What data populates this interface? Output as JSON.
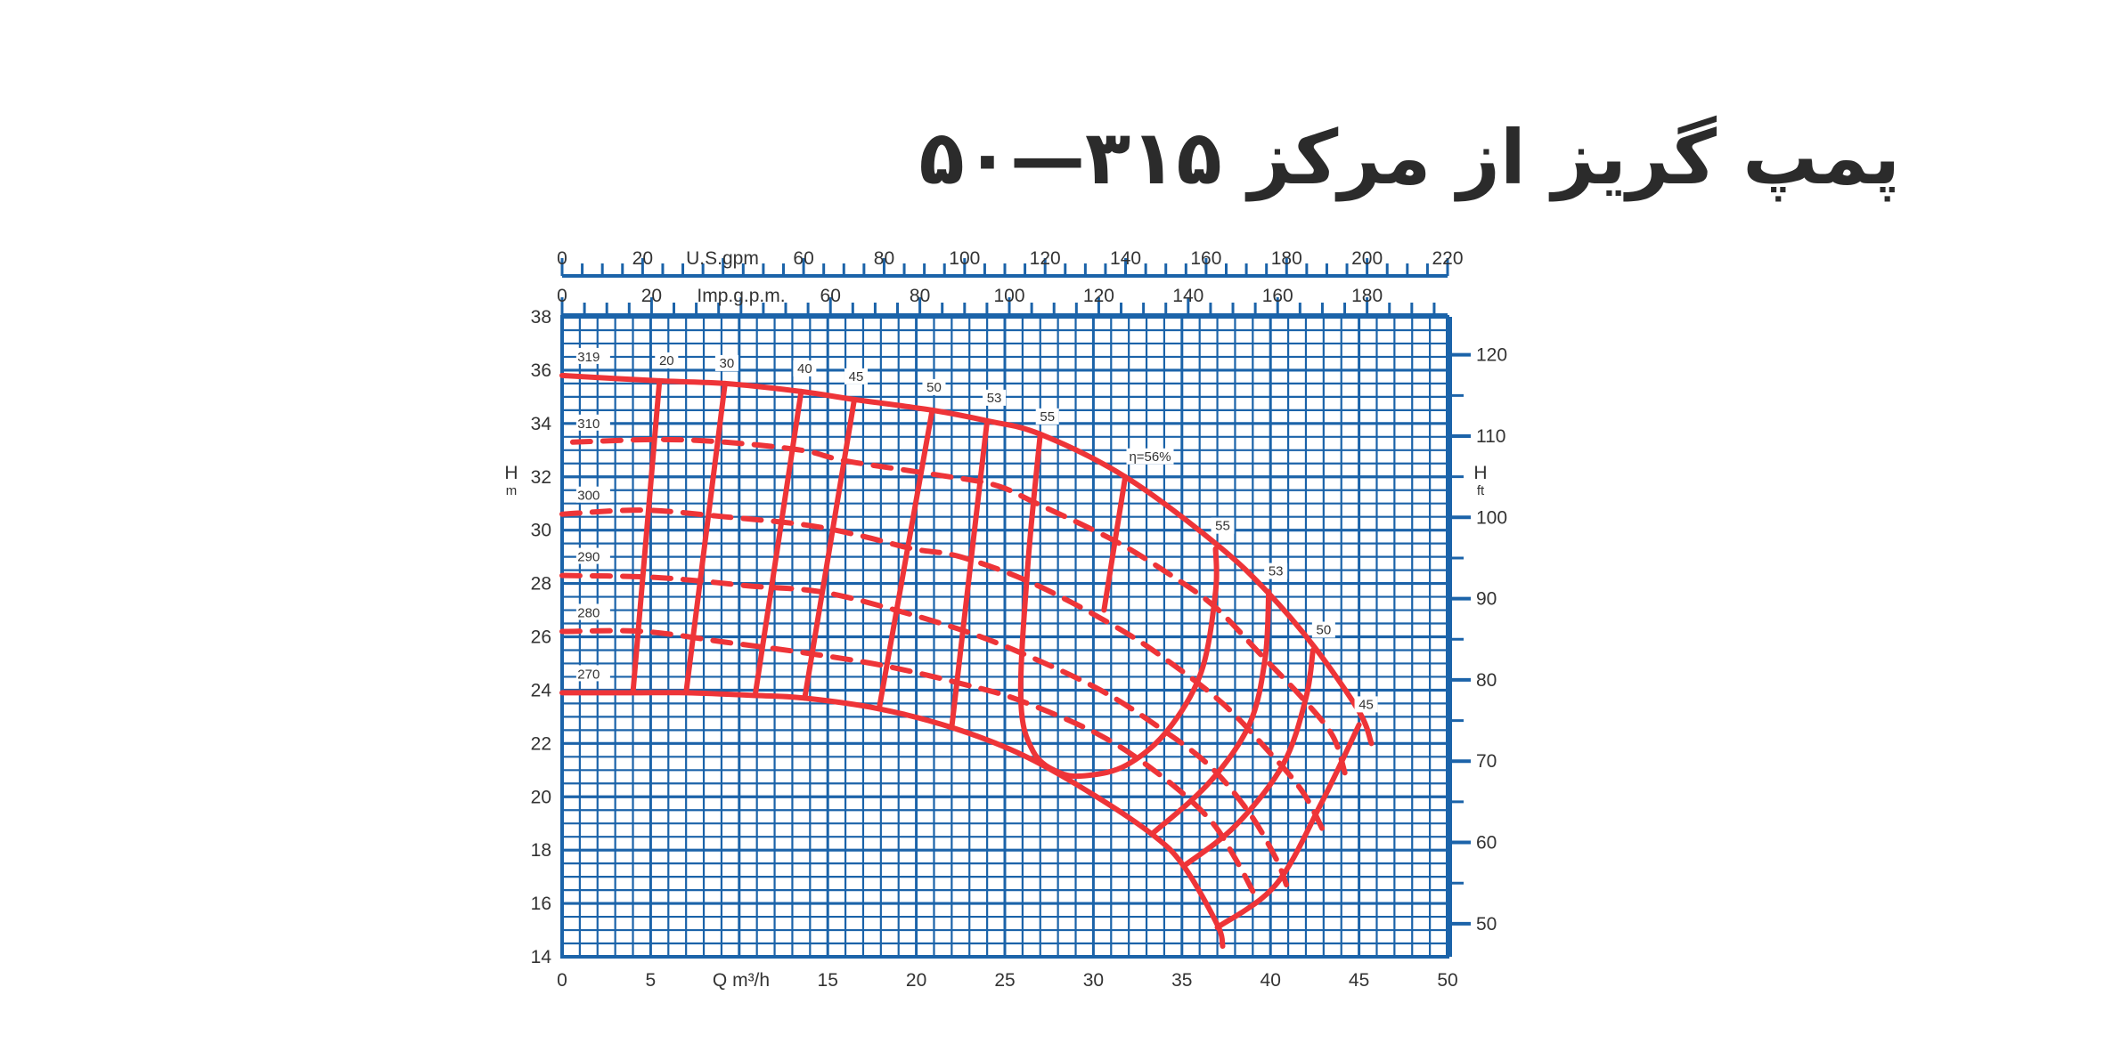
{
  "title": "پمپ گریز از مرکز ۳۱۵—۵۰",
  "colors": {
    "grid": "#1b63a9",
    "curve": "#ee3438",
    "text": "#333333"
  },
  "chart_data": {
    "type": "line",
    "xlabel": "Q m³/h",
    "ylabel": "H",
    "ylabel_unit": "m",
    "y2label": "H",
    "y2label_unit": "ft",
    "top_axis_1_label": "U.S.gpm",
    "top_axis_2_label": "Imp.g.p.m.",
    "xlim": [
      0,
      50
    ],
    "ylim": [
      14,
      38
    ],
    "y2lim_ft": [
      45.9,
      124.7
    ],
    "top1_range": [
      0,
      220
    ],
    "top2_range": [
      0,
      198
    ],
    "grid": true,
    "x_ticks": [
      "0",
      "5",
      "",
      "15",
      "20",
      "25",
      "30",
      "35",
      "40",
      "45",
      "50"
    ],
    "y_ticks": [
      "14",
      "16",
      "18",
      "20",
      "22",
      "24",
      "26",
      "28",
      "30",
      "32",
      "34",
      "36",
      "38"
    ],
    "y2_ticks": [
      "50",
      "60",
      "70",
      "80",
      "90",
      "100",
      "110",
      "120"
    ],
    "top1_ticks": [
      "0",
      "20",
      "",
      "60",
      "80",
      "100",
      "120",
      "140",
      "160",
      "180",
      "200",
      "220"
    ],
    "top2_ticks": [
      "0",
      "20",
      "",
      "60",
      "80",
      "100",
      "120",
      "140",
      "160",
      "180"
    ],
    "impeller_curves": [
      {
        "name": "319",
        "style": "solid",
        "points": [
          [
            0,
            35.8
          ],
          [
            5.5,
            35.6
          ],
          [
            9.2,
            35.5
          ],
          [
            13.5,
            35.2
          ],
          [
            16.5,
            34.9
          ],
          [
            20.9,
            34.5
          ],
          [
            24,
            34.1
          ],
          [
            27,
            33.6
          ],
          [
            31.8,
            32
          ],
          [
            36.9,
            29.5
          ],
          [
            39.8,
            27.7
          ],
          [
            42.5,
            25.6
          ],
          [
            45,
            23.2
          ],
          [
            45.7,
            22.0
          ]
        ]
      },
      {
        "name": "310",
        "style": "dashed",
        "points": [
          [
            0.6,
            33.3
          ],
          [
            5.4,
            33.4
          ],
          [
            9.2,
            33.3
          ],
          [
            13.5,
            33
          ],
          [
            16,
            32.6
          ],
          [
            20.9,
            32.1
          ],
          [
            24.4,
            31.7
          ],
          [
            26.8,
            31
          ],
          [
            31.2,
            29.6
          ],
          [
            34.4,
            28.3
          ],
          [
            36.9,
            27.1
          ],
          [
            39.5,
            25.3
          ],
          [
            41.8,
            23.7
          ],
          [
            43.5,
            22.3
          ],
          [
            44.2,
            20.9
          ]
        ]
      },
      {
        "name": "300",
        "style": "dashed",
        "points": [
          [
            0,
            30.6
          ],
          [
            4.6,
            30.75
          ],
          [
            9.2,
            30.5
          ],
          [
            13.7,
            30.2
          ],
          [
            16.8,
            29.8
          ],
          [
            19.8,
            29.3
          ],
          [
            22.5,
            29
          ],
          [
            26.6,
            28
          ],
          [
            31.2,
            26.4
          ],
          [
            34.2,
            25.1
          ],
          [
            37.3,
            23.5
          ],
          [
            39.9,
            21.7
          ],
          [
            41.8,
            20.2
          ],
          [
            43,
            18.7
          ]
        ]
      },
      {
        "name": "290",
        "style": "dashed",
        "points": [
          [
            0,
            28.3
          ],
          [
            4.6,
            28.25
          ],
          [
            7.7,
            28.1
          ],
          [
            10.7,
            27.9
          ],
          [
            14.5,
            27.7
          ],
          [
            18.3,
            27.1
          ],
          [
            22.8,
            26.2
          ],
          [
            26.6,
            25.2
          ],
          [
            30.4,
            24
          ],
          [
            33.5,
            22.7
          ],
          [
            36.5,
            21.2
          ],
          [
            38.8,
            19.4
          ],
          [
            40.3,
            17.7
          ],
          [
            40.9,
            16.7
          ]
        ]
      },
      {
        "name": "280",
        "style": "dashed",
        "points": [
          [
            0,
            26.2
          ],
          [
            4.6,
            26.2
          ],
          [
            9.2,
            25.8
          ],
          [
            13.7,
            25.4
          ],
          [
            18.3,
            24.9
          ],
          [
            22.8,
            24.2
          ],
          [
            25.9,
            23.6
          ],
          [
            30.4,
            22.3
          ],
          [
            33.8,
            20.8
          ],
          [
            36.5,
            19.2
          ],
          [
            38,
            17.7
          ],
          [
            39.2,
            16.2
          ]
        ]
      },
      {
        "name": "270",
        "style": "solid",
        "points": [
          [
            0,
            23.9
          ],
          [
            4,
            23.9
          ],
          [
            7,
            23.9
          ],
          [
            10.9,
            23.8
          ],
          [
            13.7,
            23.7
          ],
          [
            17.9,
            23.3
          ],
          [
            22,
            22.6
          ],
          [
            25.9,
            21.6
          ],
          [
            29.7,
            20.2
          ],
          [
            33.3,
            18.6
          ],
          [
            35.1,
            17.4
          ],
          [
            37,
            15.2
          ],
          [
            37.3,
            14.4
          ]
        ]
      }
    ],
    "efficiency_curves": [
      {
        "name": "20",
        "points": [
          [
            5.5,
            35.6
          ],
          [
            4.0,
            23.9
          ]
        ],
        "label_at": [
          5.9,
          36.2
        ]
      },
      {
        "name": "30",
        "points": [
          [
            9.2,
            35.5
          ],
          [
            7.0,
            23.9
          ]
        ],
        "label_at": [
          9.3,
          36.1
        ]
      },
      {
        "name": "40",
        "points": [
          [
            13.5,
            35.2
          ],
          [
            10.9,
            23.8
          ]
        ],
        "label_at": [
          13.7,
          35.9
        ]
      },
      {
        "name": "45",
        "points": [
          [
            16.5,
            34.9
          ],
          [
            13.7,
            23.7
          ]
        ],
        "label_at": [
          16.6,
          35.6
        ]
      },
      {
        "name": "50",
        "points": [
          [
            20.9,
            34.5
          ],
          [
            17.9,
            23.3
          ]
        ],
        "label_at": [
          21,
          35.2
        ]
      },
      {
        "name": "53",
        "points": [
          [
            24,
            34.1
          ],
          [
            22,
            22.6
          ]
        ],
        "label_at": [
          24.4,
          34.8
        ]
      },
      {
        "name": "55",
        "points": [
          [
            27,
            33.6
          ],
          [
            26.3,
            28.7
          ],
          [
            25.9,
            23.7
          ],
          [
            26.6,
            21.7
          ],
          [
            28.1,
            20.9
          ],
          [
            29.7,
            20.8
          ],
          [
            31.9,
            21.2
          ],
          [
            34.2,
            22.5
          ],
          [
            36.1,
            24.7
          ],
          [
            36.9,
            27.7
          ],
          [
            36.9,
            29.3
          ]
        ],
        "label_at": [
          27.4,
          34.1
        ]
      },
      {
        "name": "η=56%",
        "points": [
          [
            31.8,
            32
          ],
          [
            30.6,
            27.0
          ]
        ],
        "label_at": [
          33.2,
          32.6
        ]
      },
      {
        "name": "55",
        "points": [
          [
            36.9,
            29.3
          ]
        ],
        "label_at": [
          37.3,
          30
        ]
      },
      {
        "name": "53",
        "points": [
          [
            33.3,
            18.6
          ],
          [
            36.5,
            20.5
          ],
          [
            38.8,
            22.7
          ],
          [
            39.7,
            25.2
          ],
          [
            39.9,
            27.7
          ]
        ],
        "label_at": [
          40.3,
          28.3
        ]
      },
      {
        "name": "50",
        "points": [
          [
            35.1,
            17.4
          ],
          [
            38,
            18.9
          ],
          [
            40.7,
            21.2
          ],
          [
            42,
            23.7
          ],
          [
            42.4,
            25.5
          ]
        ],
        "label_at": [
          43,
          26.1
        ]
      },
      {
        "name": "45",
        "points": [
          [
            37,
            15.1
          ],
          [
            40.3,
            16.7
          ],
          [
            42.9,
            19.8
          ],
          [
            45,
            22.7
          ]
        ],
        "label_at": [
          45.4,
          23.3
        ]
      }
    ]
  }
}
